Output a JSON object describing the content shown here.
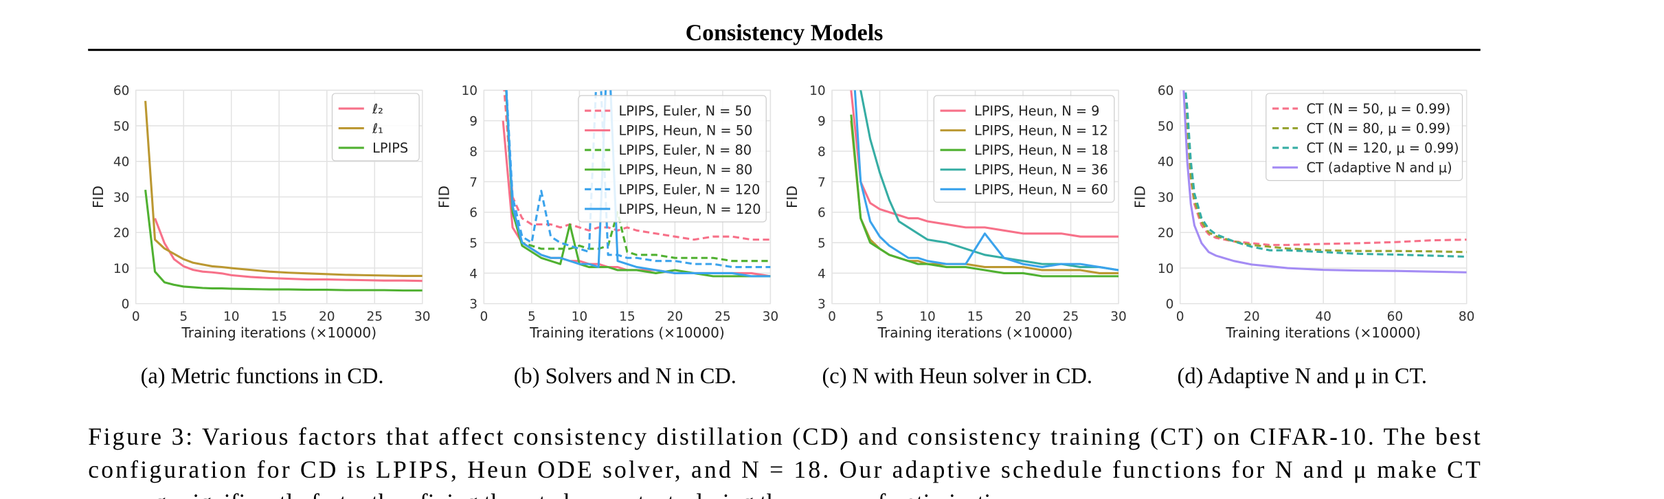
{
  "header": {
    "title": "Consistency Models"
  },
  "chart_data": [
    {
      "type": "line",
      "caption": "(a) Metric functions in CD.",
      "xlabel": "Training iterations (×10000)",
      "ylabel": "FID",
      "x": [
        1,
        2,
        3,
        4,
        5,
        6,
        7,
        8,
        9,
        10,
        12,
        14,
        16,
        18,
        20,
        22,
        24,
        26,
        28,
        30
      ],
      "xlim": [
        0,
        30
      ],
      "xticks": [
        0,
        5,
        10,
        15,
        20,
        25,
        30
      ],
      "ylim": [
        0,
        60
      ],
      "yticks": [
        0,
        10,
        20,
        30,
        40,
        50,
        60
      ],
      "grid": true,
      "legend": "upper right",
      "series": [
        {
          "name": "ℓ₂",
          "color": "#f77189",
          "dash": false,
          "values": [
            null,
            24,
            17,
            12.5,
            10.5,
            9.5,
            9,
            8.8,
            8.5,
            8,
            7.5,
            7.2,
            7,
            6.8,
            6.8,
            6.7,
            6.6,
            6.5,
            6.5,
            6.4
          ]
        },
        {
          "name": "ℓ₁",
          "color": "#bb9832",
          "dash": false,
          "values": [
            57,
            18,
            15.5,
            14,
            12.5,
            11.5,
            11,
            10.5,
            10.3,
            10,
            9.5,
            9,
            8.7,
            8.5,
            8.3,
            8.1,
            8,
            7.9,
            7.8,
            7.8
          ]
        },
        {
          "name": "LPIPS",
          "color": "#50b131",
          "dash": false,
          "values": [
            32,
            9,
            6,
            5.3,
            4.8,
            4.6,
            4.4,
            4.3,
            4.3,
            4.2,
            4.1,
            4,
            4,
            3.9,
            3.9,
            3.8,
            3.8,
            3.8,
            3.7,
            3.7
          ]
        }
      ]
    },
    {
      "type": "line",
      "caption": "(b) Solvers and N in CD.",
      "xlabel": "Training iterations (×10000)",
      "ylabel": "FID",
      "x": [
        2,
        3,
        4,
        5,
        6,
        7,
        8,
        9,
        10,
        11,
        12,
        13,
        14,
        15,
        16,
        18,
        20,
        22,
        24,
        26,
        28,
        30
      ],
      "xlim": [
        0,
        30
      ],
      "xticks": [
        0,
        5,
        10,
        15,
        20,
        25,
        30
      ],
      "ylim": [
        3,
        10
      ],
      "yticks": [
        3,
        4,
        5,
        6,
        7,
        8,
        9,
        10
      ],
      "grid": true,
      "legend": "upper right",
      "series": [
        {
          "name": "LPIPS, Euler, N = 50",
          "color": "#f77189",
          "dash": true,
          "values": [
            10.5,
            6.5,
            5.8,
            5.6,
            5.6,
            5.6,
            5.5,
            5.6,
            5.5,
            5.4,
            5.5,
            5.5,
            5.4,
            5.5,
            5.4,
            5.3,
            5.2,
            5.1,
            5.2,
            5.2,
            5.1,
            5.1
          ]
        },
        {
          "name": "LPIPS, Heun, N = 50",
          "color": "#f77189",
          "dash": false,
          "values": [
            9,
            5.5,
            5,
            4.8,
            4.6,
            4.5,
            4.5,
            4.4,
            4.4,
            4.3,
            4.3,
            4.2,
            4.2,
            4.1,
            4.1,
            4.1,
            4,
            4,
            4,
            4,
            4,
            3.9
          ]
        },
        {
          "name": "LPIPS, Euler, N = 80",
          "color": "#50b131",
          "dash": true,
          "values": [
            12,
            6,
            5,
            4.9,
            4.8,
            4.8,
            4.8,
            4.8,
            4.9,
            4.8,
            4.8,
            4.9,
            6,
            4.7,
            4.6,
            4.6,
            4.5,
            4.5,
            4.5,
            4.4,
            4.4,
            4.4
          ]
        },
        {
          "name": "LPIPS, Heun, N = 80",
          "color": "#50b131",
          "dash": false,
          "values": [
            12,
            6,
            4.9,
            4.7,
            4.5,
            4.4,
            4.3,
            5.6,
            4.3,
            4.2,
            4.2,
            4.2,
            4.1,
            4.1,
            4.1,
            4,
            4.1,
            4,
            3.9,
            3.9,
            3.9,
            3.9
          ]
        },
        {
          "name": "LPIPS, Euler, N = 120",
          "color": "#3ba3ec",
          "dash": true,
          "values": [
            12,
            6.5,
            5.2,
            5,
            6.7,
            5.2,
            5,
            4.9,
            4.8,
            4.7,
            12,
            4.6,
            4.6,
            4.5,
            4.5,
            4.4,
            4.4,
            4.3,
            4.3,
            4.2,
            4.2,
            4.2
          ]
        },
        {
          "name": "LPIPS, Heun, N = 120",
          "color": "#3ba3ec",
          "dash": false,
          "values": [
            12,
            6.2,
            5,
            4.8,
            4.6,
            4.5,
            4.5,
            4.4,
            4.3,
            4.3,
            4.2,
            12,
            4.4,
            4.3,
            4.2,
            4.1,
            4,
            4,
            4,
            4,
            3.9,
            3.9
          ]
        }
      ]
    },
    {
      "type": "line",
      "caption": "(c) N with Heun solver in CD.",
      "xlabel": "Training iterations (×10000)",
      "ylabel": "FID",
      "x": [
        2,
        3,
        4,
        5,
        6,
        7,
        8,
        9,
        10,
        12,
        14,
        16,
        18,
        20,
        22,
        24,
        26,
        28,
        30
      ],
      "xlim": [
        0,
        30
      ],
      "xticks": [
        0,
        5,
        10,
        15,
        20,
        25,
        30
      ],
      "ylim": [
        3,
        10
      ],
      "yticks": [
        3,
        4,
        5,
        6,
        7,
        8,
        9,
        10
      ],
      "grid": true,
      "legend": "upper right",
      "series": [
        {
          "name": "LPIPS, Heun, N = 9",
          "color": "#f77189",
          "dash": false,
          "values": [
            10,
            7,
            6.3,
            6.1,
            6,
            5.9,
            5.8,
            5.8,
            5.7,
            5.6,
            5.5,
            5.5,
            5.4,
            5.3,
            5.3,
            5.3,
            5.2,
            5.2,
            5.2
          ]
        },
        {
          "name": "LPIPS, Heun, N = 12",
          "color": "#bb9832",
          "dash": false,
          "values": [
            9,
            5.8,
            5.1,
            4.8,
            4.6,
            4.5,
            4.4,
            4.4,
            4.3,
            4.3,
            4.3,
            4.2,
            4.2,
            4.2,
            4.1,
            4.1,
            4.1,
            4,
            4
          ]
        },
        {
          "name": "LPIPS, Heun, N = 18",
          "color": "#50b131",
          "dash": false,
          "values": [
            9.2,
            5.8,
            5,
            4.8,
            4.6,
            4.5,
            4.4,
            4.3,
            4.3,
            4.2,
            4.2,
            4.1,
            4,
            4,
            3.9,
            3.9,
            3.9,
            3.9,
            3.9
          ]
        },
        {
          "name": "LPIPS, Heun, N = 36",
          "color": "#36ada4",
          "dash": false,
          "values": [
            12,
            10,
            8.4,
            7.3,
            6.4,
            5.7,
            5.5,
            5.3,
            5.1,
            5,
            4.8,
            4.6,
            4.5,
            4.4,
            4.3,
            4.3,
            4.2,
            4.2,
            4.1
          ]
        },
        {
          "name": "LPIPS, Heun, N = 60",
          "color": "#3ba3ec",
          "dash": false,
          "values": [
            12,
            7,
            5.7,
            5.2,
            4.9,
            4.7,
            4.5,
            4.5,
            4.4,
            4.3,
            4.3,
            5.3,
            4.5,
            4.3,
            4.2,
            4.3,
            4.3,
            4.2,
            4.1
          ]
        }
      ]
    },
    {
      "type": "line",
      "caption": "(d) Adaptive N and μ in CT.",
      "xlabel": "Training iterations (×10000)",
      "ylabel": "FID",
      "x": [
        1,
        2,
        3,
        4,
        6,
        8,
        10,
        15,
        20,
        25,
        30,
        40,
        50,
        60,
        70,
        80
      ],
      "xlim": [
        0,
        80
      ],
      "xticks": [
        0,
        20,
        40,
        60,
        80
      ],
      "ylim": [
        0,
        60
      ],
      "yticks": [
        0,
        10,
        20,
        30,
        40,
        50,
        60
      ],
      "grid": true,
      "legend": "upper right",
      "series": [
        {
          "name": "CT (N = 50, μ = 0.99)",
          "color": "#f77189",
          "dash": true,
          "values": [
            65,
            50,
            35,
            28,
            22,
            19.5,
            18.5,
            17.5,
            17,
            16.5,
            16.5,
            16.8,
            17,
            17.3,
            17.8,
            18
          ]
        },
        {
          "name": "CT (N = 80, μ = 0.99)",
          "color": "#97a431",
          "dash": true,
          "values": [
            65,
            50,
            36,
            29,
            23,
            20,
            19,
            17.5,
            16.5,
            16,
            15.5,
            15,
            14.8,
            14.8,
            14.7,
            14.5
          ]
        },
        {
          "name": "CT (N = 120, μ = 0.99)",
          "color": "#36ada4",
          "dash": true,
          "values": [
            65,
            55,
            40,
            31,
            24,
            21,
            19.5,
            17.5,
            16,
            15,
            15,
            14.5,
            14,
            13.8,
            13.5,
            13.2
          ]
        },
        {
          "name": "CT (adaptive N and μ)",
          "color": "#a48cf4",
          "dash": false,
          "values": [
            60,
            40,
            28,
            22,
            17,
            14.5,
            13.5,
            12,
            11,
            10.5,
            10,
            9.5,
            9.3,
            9.2,
            9,
            8.8
          ]
        }
      ]
    }
  ],
  "figure_caption": [
    "Figure 3: Various factors that affect consistency distillation (CD) and consistency training (CT) on CIFAR-10. The best",
    "configuration for CD is LPIPS, Heun ODE solver, and N = 18. Our adaptive schedule functions for N and μ make CT",
    "converge significantly faster than fixing them to be constants during the course of optimization."
  ]
}
